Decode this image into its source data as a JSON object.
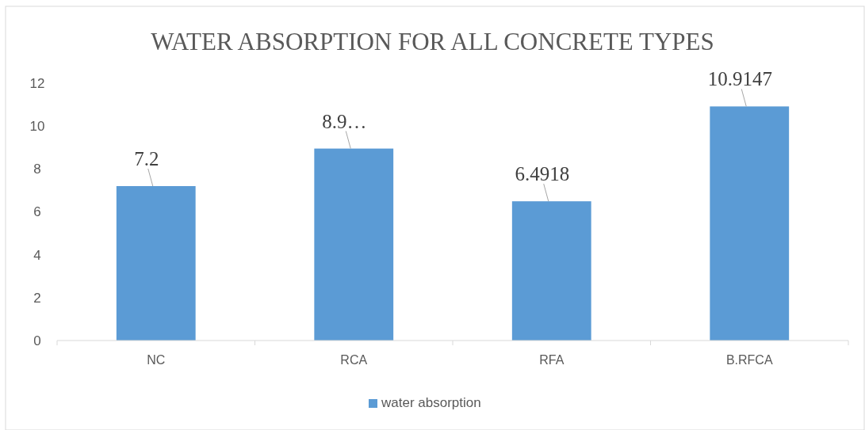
{
  "chart_data": {
    "type": "bar",
    "title": "WATER ABSORPTION FOR ALL CONCRETE TYPES",
    "categories": [
      "NC",
      "RCA",
      "RFA",
      "B.RFCA"
    ],
    "series": [
      {
        "name": "water absorption",
        "color": "#5b9bd5",
        "values": [
          7.2,
          8.95,
          6.4918,
          10.9147
        ],
        "value_labels": [
          "7.2",
          "8.9…",
          "6.4918",
          "10.9147"
        ]
      }
    ],
    "ylim": [
      0,
      12
    ],
    "yticks": [
      0,
      2,
      4,
      6,
      8,
      10,
      12
    ],
    "grid": false,
    "legend": "bottom"
  }
}
